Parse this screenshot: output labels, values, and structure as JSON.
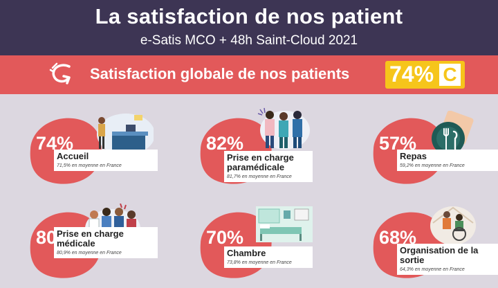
{
  "header": {
    "title": "La satisfaction de nos patient",
    "subtitle": "e-Satis MCO + 48h Saint-Cloud 2021"
  },
  "banner": {
    "label": "Satisfaction globale de nos patients",
    "score": "74%",
    "grade": "C",
    "icon": "curved-arrow-icon"
  },
  "colors": {
    "header_bg": "#3d3554",
    "banner_bg": "#e2595a",
    "blob": "#e2595a",
    "score_bg": "#f6c51b",
    "page_bg": "#dcd7e0"
  },
  "cards": [
    {
      "pct": "74%",
      "label": "Accueil",
      "avg": "71,5% en moyenne en France",
      "icon": "reception-desk-illustration"
    },
    {
      "pct": "82%",
      "label": "Prise en charge paramédicale",
      "avg": "81,7% en moyenne en France",
      "icon": "nurses-illustration"
    },
    {
      "pct": "57%",
      "label": "Repas",
      "avg": "59,2% en moyenne en France",
      "icon": "plate-cutlery-icon"
    },
    {
      "pct": "80%",
      "label": "Prise en charge médicale",
      "avg": "80,9% en moyenne en France",
      "icon": "doctors-illustration"
    },
    {
      "pct": "70%",
      "label": "Chambre",
      "avg": "73,8% en moyenne en France",
      "icon": "hospital-room-illustration"
    },
    {
      "pct": "68%",
      "label": "Organisation de la sortie",
      "avg": "64,3% en moyenne en France",
      "icon": "wheelchair-exit-illustration"
    }
  ]
}
